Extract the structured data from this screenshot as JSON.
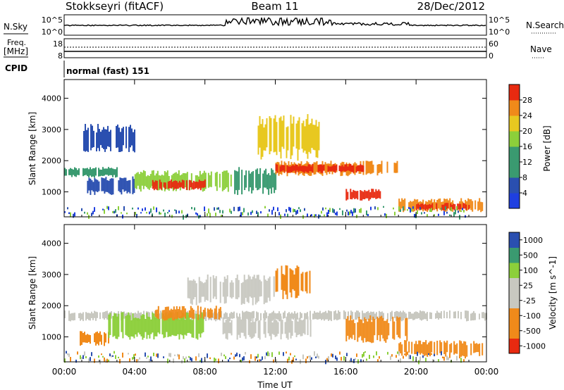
{
  "header": {
    "station": "Stokkseyri (fitACF)",
    "beam": "Beam 11",
    "date": "28/Dec/2012"
  },
  "nsky_panel": {
    "label": "N.Sky",
    "tick_top": "10^5",
    "tick_bottom": "10^0",
    "right_label": "N.Search",
    "right_tick_top": "10^5",
    "right_tick_bottom": "10^0"
  },
  "freq_panel": {
    "label_line1": "Freq.",
    "label_line2": "[MHz]",
    "tick_top": "18",
    "tick_bottom": "8",
    "right_label": "Nave",
    "right_tick_top": "60",
    "right_tick_bottom": "0"
  },
  "cpid_panel": {
    "label": "CPID",
    "value": "normal (fast) 151"
  },
  "colors": {
    "white": "#ffffff",
    "blue": "#1f3fe0",
    "darkblue": "#2a4fb0",
    "teal": "#3a9a70",
    "lightgreen": "#8ccf3a",
    "yellow": "#e8c820",
    "orange": "#f08a1a",
    "red": "#e82a10",
    "gray": "#c8c8c0"
  },
  "chart_data": [
    {
      "type": "heatmap",
      "name": "Power",
      "ylabel": "Slant Range [km]",
      "xlim": [
        0,
        24
      ],
      "ylim": [
        200,
        4600
      ],
      "yticks": [
        1000,
        2000,
        3000,
        4000
      ],
      "colorbar": {
        "label": "Power [dB]",
        "range": [
          0,
          32
        ],
        "ticks": [
          4,
          8,
          12,
          16,
          20,
          24,
          28
        ]
      },
      "regions": [
        {
          "t": [
            0.0,
            3.0
          ],
          "r": [
            1450,
            1800
          ],
          "level": "teal"
        },
        {
          "t": [
            1.3,
            4.0
          ],
          "r": [
            900,
            1500
          ],
          "level": "darkblue"
        },
        {
          "t": [
            4.0,
            9.5
          ],
          "r": [
            1000,
            1700
          ],
          "level": "lightgreen"
        },
        {
          "t": [
            5.0,
            8.0
          ],
          "r": [
            1050,
            1400
          ],
          "level": "red"
        },
        {
          "t": [
            9.5,
            12.0
          ],
          "r": [
            900,
            1800
          ],
          "level": "teal"
        },
        {
          "t": [
            12.0,
            19.0
          ],
          "r": [
            1500,
            2000
          ],
          "level": "orange"
        },
        {
          "t": [
            12.0,
            17.0
          ],
          "r": [
            1600,
            1900
          ],
          "level": "red"
        },
        {
          "t": [
            16.0,
            18.0
          ],
          "r": [
            700,
            1100
          ],
          "level": "red"
        },
        {
          "t": [
            19.0,
            23.8
          ],
          "r": [
            350,
            800
          ],
          "level": "orange"
        },
        {
          "t": [
            20.0,
            23.0
          ],
          "r": [
            400,
            650
          ],
          "level": "red"
        },
        {
          "t": [
            11.0,
            14.5
          ],
          "r": [
            2000,
            3500
          ],
          "level": "yellow"
        },
        {
          "t": [
            1.0,
            4.0
          ],
          "r": [
            2200,
            3200
          ],
          "level": "darkblue"
        }
      ]
    },
    {
      "type": "heatmap",
      "name": "Velocity",
      "ylabel": "Slant Range [km]",
      "xlabel": "Time UT",
      "xlim": [
        0,
        24
      ],
      "ylim": [
        200,
        4600
      ],
      "yticks": [
        1000,
        2000,
        3000,
        4000
      ],
      "xtick_labels": [
        "00:00",
        "04:00",
        "08:00",
        "12:00",
        "16:00",
        "20:00",
        "00:00"
      ],
      "colorbar": {
        "label": "Velocity [m s^-1]",
        "range": [
          -1200,
          1200
        ],
        "ticks": [
          1000,
          500,
          100,
          25,
          -25,
          -100,
          -500,
          -1000
        ]
      },
      "regions": [
        {
          "t": [
            0.0,
            24.0
          ],
          "r": [
            1500,
            1850
          ],
          "level": "gray"
        },
        {
          "t": [
            0.8,
            2.5
          ],
          "r": [
            700,
            1200
          ],
          "level": "orange"
        },
        {
          "t": [
            2.5,
            8.0
          ],
          "r": [
            900,
            1800
          ],
          "level": "lightgreen"
        },
        {
          "t": [
            5.0,
            9.0
          ],
          "r": [
            1500,
            2000
          ],
          "level": "orange"
        },
        {
          "t": [
            9.0,
            14.0
          ],
          "r": [
            900,
            1700
          ],
          "level": "gray"
        },
        {
          "t": [
            16.0,
            19.5
          ],
          "r": [
            800,
            1700
          ],
          "level": "orange"
        },
        {
          "t": [
            19.0,
            23.8
          ],
          "r": [
            350,
            900
          ],
          "level": "orange"
        },
        {
          "t": [
            12.0,
            14.0
          ],
          "r": [
            2200,
            3300
          ],
          "level": "orange"
        },
        {
          "t": [
            7.0,
            12.0
          ],
          "r": [
            2000,
            3000
          ],
          "level": "gray"
        }
      ]
    }
  ]
}
